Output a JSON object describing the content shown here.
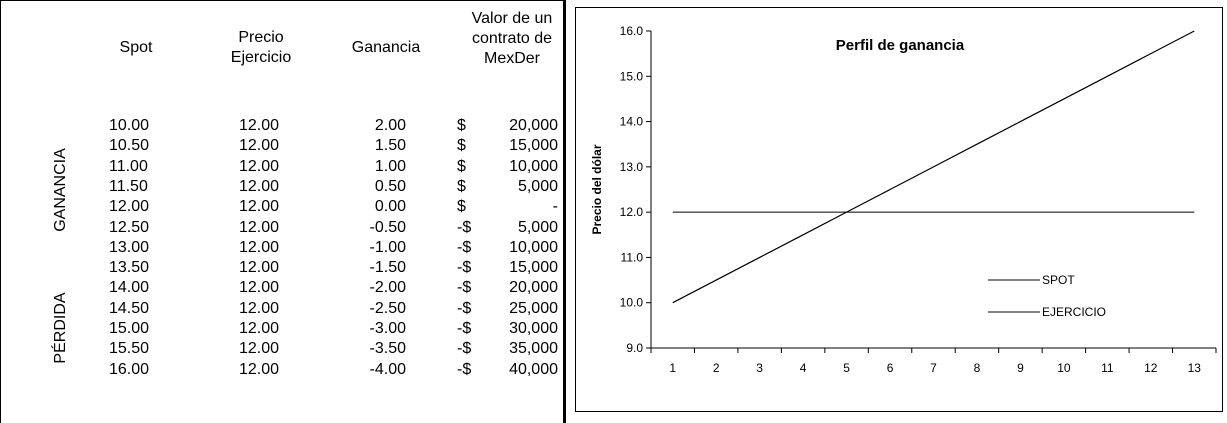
{
  "table": {
    "headers": {
      "spot": "Spot",
      "strike_line1": "Precio",
      "strike_line2": "Ejercicio",
      "gain": "Ganancia",
      "value_line1": "Valor de un",
      "value_line2": "contrato de",
      "value_line3": "MexDer"
    },
    "section_labels": {
      "profit": "GANANCIA",
      "loss": "PÉRDIDA"
    },
    "rows": [
      {
        "spot": "10.00",
        "strike": "12.00",
        "gain": "2.00",
        "sign": "$",
        "value": "20,000"
      },
      {
        "spot": "10.50",
        "strike": "12.00",
        "gain": "1.50",
        "sign": "$",
        "value": "15,000"
      },
      {
        "spot": "11.00",
        "strike": "12.00",
        "gain": "1.00",
        "sign": "$",
        "value": "10,000"
      },
      {
        "spot": "11.50",
        "strike": "12.00",
        "gain": "0.50",
        "sign": "$",
        "value": "5,000"
      },
      {
        "spot": "12.00",
        "strike": "12.00",
        "gain": "0.00",
        "sign": "$",
        "value": "-"
      },
      {
        "spot": "12.50",
        "strike": "12.00",
        "gain": "-0.50",
        "sign": "-$",
        "value": "5,000"
      },
      {
        "spot": "13.00",
        "strike": "12.00",
        "gain": "-1.00",
        "sign": "-$",
        "value": "10,000"
      },
      {
        "spot": "13.50",
        "strike": "12.00",
        "gain": "-1.50",
        "sign": "-$",
        "value": "15,000"
      },
      {
        "spot": "14.00",
        "strike": "12.00",
        "gain": "-2.00",
        "sign": "-$",
        "value": "20,000"
      },
      {
        "spot": "14.50",
        "strike": "12.00",
        "gain": "-2.50",
        "sign": "-$",
        "value": "25,000"
      },
      {
        "spot": "15.00",
        "strike": "12.00",
        "gain": "-3.00",
        "sign": "-$",
        "value": "30,000"
      },
      {
        "spot": "15.50",
        "strike": "12.00",
        "gain": "-3.50",
        "sign": "-$",
        "value": "35,000"
      },
      {
        "spot": "16.00",
        "strike": "12.00",
        "gain": "-4.00",
        "sign": "-$",
        "value": "40,000"
      }
    ]
  },
  "chart_data": {
    "type": "line",
    "title": "Perfil de ganancia",
    "xlabel": "",
    "ylabel": "Precio del dólar",
    "categories": [
      "1",
      "2",
      "3",
      "4",
      "5",
      "6",
      "7",
      "8",
      "9",
      "10",
      "11",
      "12",
      "13"
    ],
    "ylim": [
      9.0,
      16.0
    ],
    "yticks": [
      "9.0",
      "10.0",
      "11.0",
      "12.0",
      "13.0",
      "14.0",
      "15.0",
      "16.0"
    ],
    "grid": false,
    "legend_position": "right",
    "series": [
      {
        "name": "SPOT",
        "values": [
          10.0,
          10.5,
          11.0,
          11.5,
          12.0,
          12.5,
          13.0,
          13.5,
          14.0,
          14.5,
          15.0,
          15.5,
          16.0
        ],
        "color": "#000000"
      },
      {
        "name": "EJERCICIO",
        "values": [
          12.0,
          12.0,
          12.0,
          12.0,
          12.0,
          12.0,
          12.0,
          12.0,
          12.0,
          12.0,
          12.0,
          12.0,
          12.0
        ],
        "color": "#000000"
      }
    ]
  }
}
